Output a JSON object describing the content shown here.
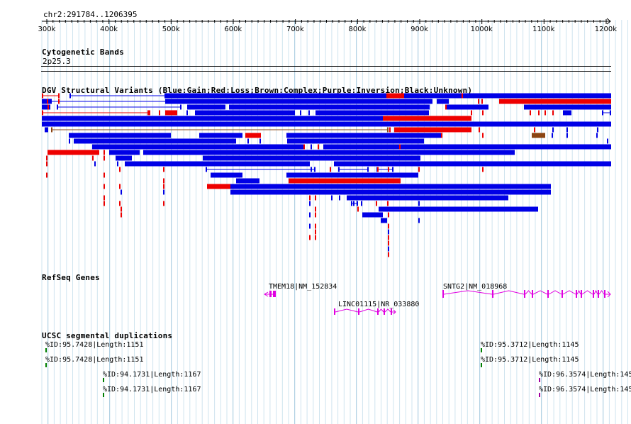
{
  "region": {
    "label": "chr2:291784..1206395",
    "start": 300000,
    "end": 1200000
  },
  "ruler": {
    "ticks": [
      "300k",
      "400k",
      "500k",
      "600k",
      "700k",
      "800k",
      "900k",
      "1000k",
      "1100k",
      "1200k"
    ]
  },
  "tracks": {
    "cytoband": {
      "title": "Cytogenetic Bands",
      "band": "2p25.3"
    },
    "dgv": {
      "title": "DGV Structural Variants (Blue:Gain;Red:Loss;Brown:Complex;Purple:Inversion;Black:Unknown)",
      "colors": {
        "gain": "#0000e6",
        "loss": "#ee0000",
        "complex": "#8b4513",
        "inversion": "#9b30ff",
        "unknown": "#000000"
      }
    },
    "refseq": {
      "title": "RefSeq Genes",
      "color": "#e000e0",
      "genes": [
        {
          "label": "TMEM18|NM_152834",
          "start": 655000,
          "end": 662000,
          "strand": "-"
        },
        {
          "label": "LINC01115|NR_033880",
          "start": 771000,
          "end": 857000,
          "strand": "+"
        },
        {
          "label": "SNTG2|NM_018968",
          "start": 944000,
          "end": 1200000,
          "strand": "+"
        }
      ]
    },
    "segdup": {
      "title": "UCSC segmental duplications",
      "items": [
        {
          "label": "%ID:95.7428|Length:1151",
          "color": "#008000"
        },
        {
          "label": "%ID:95.7428|Length:1151",
          "color": "#008000"
        },
        {
          "label": "%ID:94.1731|Length:1167",
          "color": "#008000"
        },
        {
          "label": "%ID:94.1731|Length:1167",
          "color": "#008000"
        },
        {
          "label": "%ID:95.3712|Length:1145",
          "color": "#008000"
        },
        {
          "label": "%ID:95.3712|Length:1145",
          "color": "#008000"
        },
        {
          "label": "%ID:96.3574|Length:145",
          "color": "#a000a0"
        },
        {
          "label": "%ID:96.3574|Length:145",
          "color": "#a000a0"
        }
      ]
    }
  }
}
